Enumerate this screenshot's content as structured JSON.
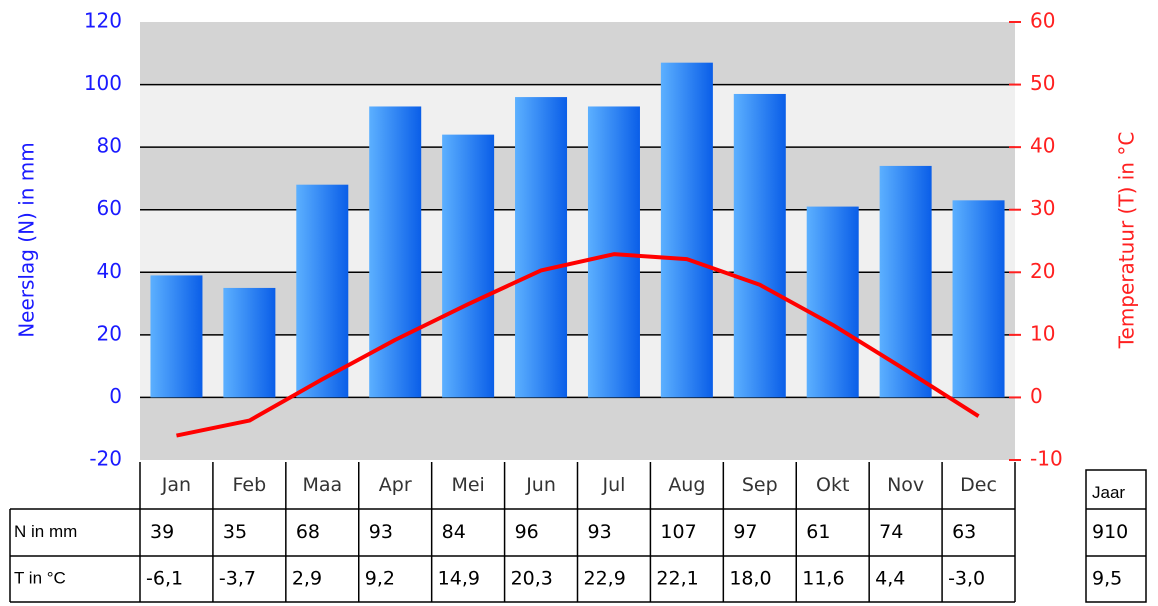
{
  "chart_data": {
    "type": "bar_line",
    "categories": [
      "Jan",
      "Feb",
      "Maa",
      "Apr",
      "Mei",
      "Jun",
      "Jul",
      "Aug",
      "Sep",
      "Okt",
      "Nov",
      "Dec"
    ],
    "series": [
      {
        "name": "N in mm",
        "color": "#1a75ff",
        "values": [
          39,
          35,
          68,
          93,
          84,
          96,
          93,
          107,
          97,
          61,
          74,
          63
        ]
      },
      {
        "name": "T in °C",
        "color": "#ff0000",
        "axis": "y2",
        "type": "line",
        "values": [
          -6.1,
          -3.7,
          2.9,
          9.2,
          14.9,
          20.3,
          22.9,
          22.1,
          18.0,
          11.6,
          4.4,
          -3.0
        ],
        "value_labels": [
          "-6,1",
          "-3,7",
          "2,9",
          "9,2",
          "14,9",
          "20,3",
          "22,9",
          "22,1",
          "18,0",
          "11,6",
          "4,4",
          "-3,0"
        ]
      }
    ],
    "ylabel": "Neerslag (N) in mm",
    "y2label": "Temperatuur (T) in °C",
    "ylim": [
      -20,
      120
    ],
    "yticks": [
      -20,
      0,
      20,
      40,
      60,
      80,
      100,
      120
    ],
    "y2lim": [
      -10,
      60
    ],
    "y2ticks": [
      -10,
      0,
      10,
      20,
      30,
      40,
      50,
      60
    ],
    "grid": true,
    "annual": {
      "label": "Jaar",
      "precipitation": 910,
      "temperature": "9,5"
    }
  }
}
